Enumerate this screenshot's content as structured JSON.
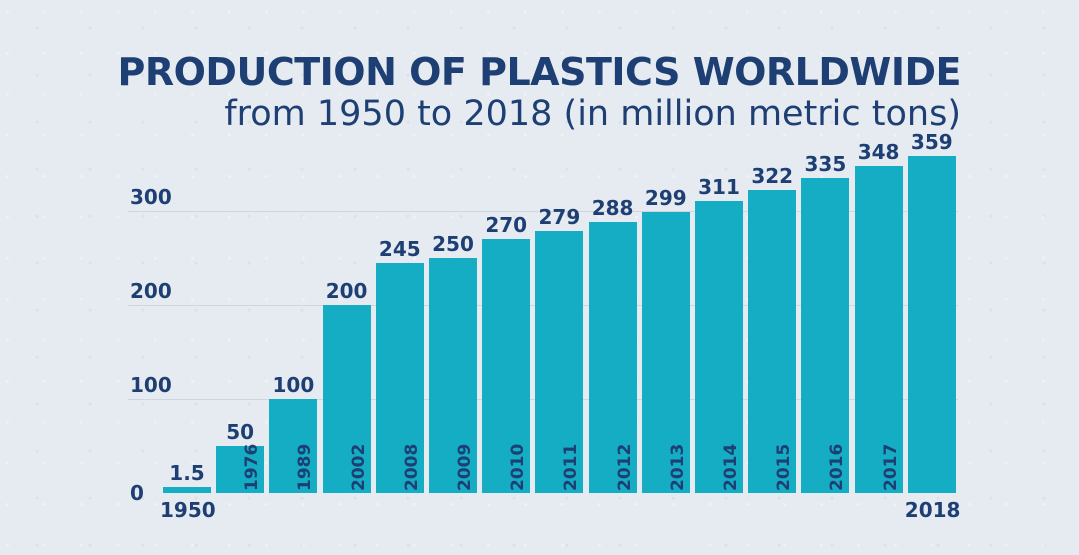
{
  "header": {
    "title": "PRODUCTION OF PLASTICS WORLDWIDE",
    "subtitle": "from 1950 to 2018 (in million metric tons)"
  },
  "colors": {
    "bar": "#14adc4",
    "text": "#1d3f73",
    "background": "#e6ebf1"
  },
  "chart_data": {
    "type": "bar",
    "title": "PRODUCTION OF PLASTICS WORLDWIDE",
    "subtitle": "from 1950 to 2018 (in million metric tons)",
    "xlabel": "",
    "ylabel": "million metric tons",
    "categories": [
      "1950",
      "1976",
      "1989",
      "2002",
      "2008",
      "2009",
      "2010",
      "2011",
      "2012",
      "2013",
      "2014",
      "2015",
      "2016",
      "2017",
      "2018"
    ],
    "values": [
      1.5,
      50,
      100,
      200,
      245,
      250,
      270,
      279,
      288,
      299,
      311,
      322,
      335,
      348,
      359
    ],
    "value_labels": [
      "1.5",
      "50",
      "100",
      "200",
      "245",
      "250",
      "270",
      "279",
      "288",
      "299",
      "311",
      "322",
      "335",
      "348",
      "359"
    ],
    "yticks": [
      "0",
      "100",
      "200",
      "300"
    ],
    "ylim": [
      0,
      380
    ],
    "grid": true,
    "legend": null
  }
}
